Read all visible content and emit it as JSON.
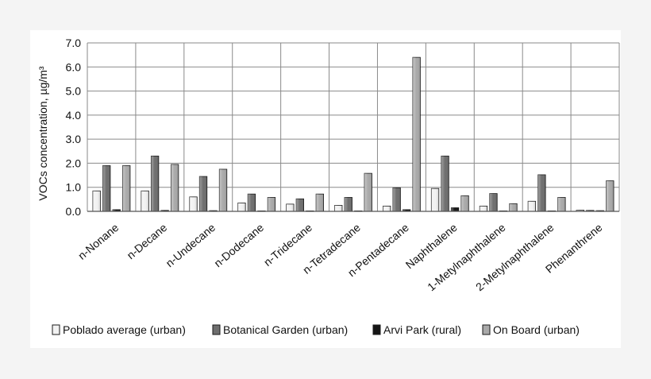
{
  "chart_data": {
    "type": "bar",
    "title": "",
    "xlabel": "",
    "ylabel": "VOCs concentration, µg/m³",
    "ylim": [
      0,
      7
    ],
    "yticks": [
      "0.0",
      "1.0",
      "2.0",
      "3.0",
      "4.0",
      "5.0",
      "6.0",
      "7.0"
    ],
    "grid": true,
    "legend_position": "bottom",
    "categories": [
      "n-Nonane",
      "n-Decane",
      "n-Undecane",
      "n-Dodecane",
      "n-Tridecane",
      "n-Tetradecane",
      "n-Pentadecane",
      "Naphthalene",
      "1-Metylnaphthalene",
      "2-Metylnaphthalene",
      "Phenanthrene"
    ],
    "series": [
      {
        "name": "Poblado average (urban)",
        "color": "#f2f2f2",
        "values": [
          0.85,
          0.85,
          0.6,
          0.35,
          0.3,
          0.25,
          0.22,
          0.95,
          0.22,
          0.42,
          0.05
        ]
      },
      {
        "name": "Botanical Garden (urban)",
        "color": "#6e6e6e",
        "values": [
          1.9,
          2.3,
          1.45,
          0.72,
          0.52,
          0.58,
          0.98,
          2.3,
          0.74,
          1.52,
          0.04
        ]
      },
      {
        "name": "Arvi Park (rural)",
        "color": "#151515",
        "values": [
          0.07,
          0.04,
          0.03,
          0.02,
          0.02,
          0.02,
          0.07,
          0.15,
          0.02,
          0.02,
          0.03
        ]
      },
      {
        "name": "On Board (urban)",
        "color": "#a9a9a9",
        "values": [
          1.9,
          1.95,
          1.75,
          0.58,
          0.72,
          1.58,
          6.4,
          0.65,
          0.32,
          0.58,
          1.27
        ]
      }
    ]
  }
}
